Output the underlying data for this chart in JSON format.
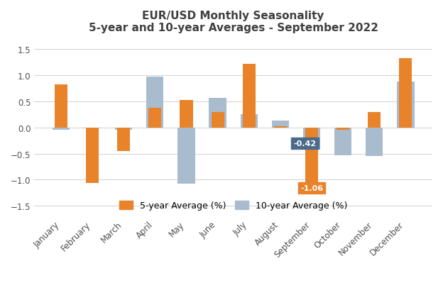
{
  "title_line1": "EUR/USD Monthly Seasonality",
  "title_line2": "5-year and 10-year Averages - September 2022",
  "months": [
    "January",
    "February",
    "March",
    "April",
    "May",
    "June",
    "July",
    "August",
    "September",
    "October",
    "November",
    "December"
  ],
  "five_year": [
    0.83,
    -1.06,
    -0.45,
    0.38,
    0.52,
    0.3,
    1.22,
    0.03,
    -1.06,
    -0.04,
    0.3,
    1.33
  ],
  "ten_year": [
    -0.05,
    -0.02,
    -0.04,
    0.98,
    -1.08,
    0.57,
    0.25,
    0.13,
    -0.42,
    -0.53,
    -0.55,
    0.88
  ],
  "bar_color_5yr": "#E8832A",
  "bar_color_10yr": "#A8BCCD",
  "annotation_sep_5yr": "-1.06",
  "annotation_sep_10yr": "-0.42",
  "annotation_bg_5yr": "#E8832A",
  "annotation_bg_10yr": "#4A6B8A",
  "annotation_text_color": "white",
  "ylim": [
    -1.7,
    1.7
  ],
  "yticks": [
    -1.5,
    -1.0,
    -0.5,
    0.0,
    0.5,
    1.0,
    1.5
  ],
  "legend_5yr": "5-year Average (%)",
  "legend_10yr": "10-year Average (%)",
  "background_color": "#FFFFFF",
  "grid_color": "#D0D0D0",
  "title_color": "#404040",
  "tick_color": "#505050",
  "title_fontsize": 11,
  "axis_fontsize": 8.5,
  "legend_fontsize": 9,
  "bar_width": 0.55
}
